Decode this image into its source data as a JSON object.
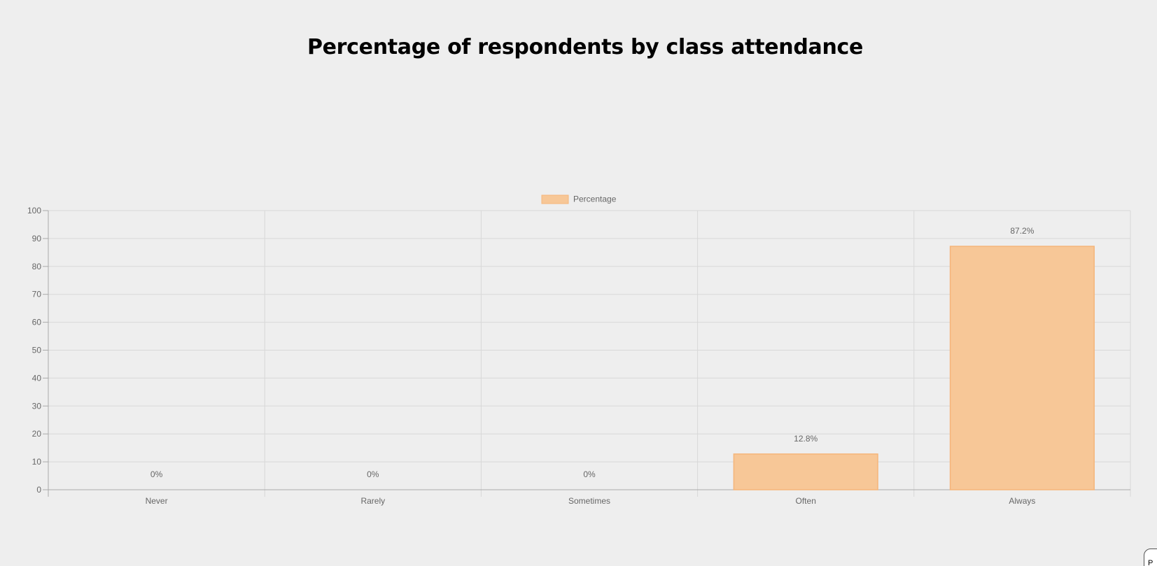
{
  "page": {
    "title": "Percentage of respondents by class attendance",
    "corner_tab_label": "P"
  },
  "chart_data": {
    "type": "bar",
    "title": "Percentage of respondents by class attendance",
    "categories": [
      "Never",
      "Rarely",
      "Sometimes",
      "Often",
      "Always"
    ],
    "series": [
      {
        "name": "Percentage",
        "values": [
          0,
          0,
          0,
          12.8,
          87.2
        ],
        "data_labels": [
          "0%",
          "0%",
          "0%",
          "12.8%",
          "87.2%"
        ]
      }
    ],
    "ylim": [
      0,
      100
    ],
    "y_ticks": [
      "0",
      "10",
      "20",
      "30",
      "40",
      "50",
      "60",
      "70",
      "80",
      "90",
      "100"
    ],
    "xlabel": "",
    "ylabel": "",
    "grid": true,
    "legend_position": "top",
    "colors": {
      "bar_fill": "#f7c797",
      "bar_border": "#f5b57a",
      "grid": "#d8d8d8",
      "axis": "#aaaaaa",
      "text": "#666666"
    }
  }
}
